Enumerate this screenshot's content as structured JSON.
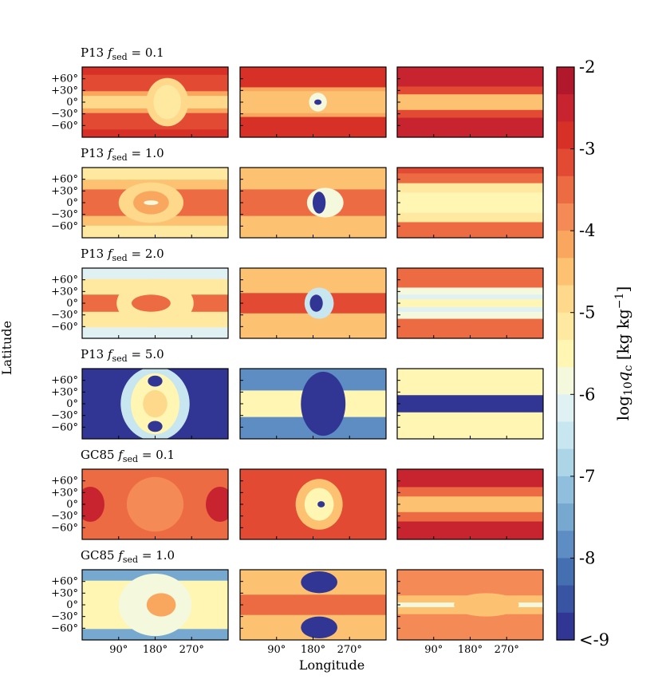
{
  "chart_data": {
    "type": "heatmap",
    "xlabel": "Longitude",
    "ylabel": "Latitude",
    "x_ticks": [
      "90°",
      "180°",
      "270°"
    ],
    "y_ticks": [
      "+60°",
      "+30°",
      "0°",
      "−30°",
      "−60°"
    ],
    "xlim": [
      0,
      360
    ],
    "ylim": [
      -90,
      90
    ],
    "colorbar": {
      "label": "log10 qc [kg kg−1]",
      "label_parts": {
        "pre": "log",
        "sub": "10",
        "q": "q",
        "qsub": "c",
        "post": " [kg kg",
        "sup": "−1",
        "end": "]"
      },
      "range": [
        -9,
        -2
      ],
      "ticks": [
        "-2",
        "-3",
        "-4",
        "-5",
        "-6",
        "-7",
        "-8",
        "<-9"
      ],
      "colors": [
        "#b2182b",
        "#c82430",
        "#d73027",
        "#e34a33",
        "#ec6b42",
        "#f48a55",
        "#f9a65f",
        "#fdc271",
        "#fed88b",
        "#ffe8a0",
        "#fff6b4",
        "#f4f8dc",
        "#e0f1f4",
        "#c7e6ef",
        "#acd5e7",
        "#8fbfdc",
        "#76a8d0",
        "#5d8dc2",
        "#4470b2",
        "#3a54a4",
        "#313695"
      ]
    },
    "rows": [
      {
        "label": "P13",
        "fsed": "= 0.1",
        "fsed_sym": "f",
        "fsed_sub": "sed",
        "panels": [
          {
            "bg": -2.9,
            "bands": [
              {
                "lat": 80,
                "w": 10,
                "v": -2.8
              },
              {
                "lat": -80,
                "w": 10,
                "v": -2.8
              },
              {
                "lat": 0,
                "w": 28,
                "v": -4.2
              },
              {
                "lat": 0,
                "w": 16,
                "v": -4.7
              }
            ],
            "blobs": [
              {
                "lon": 210,
                "lat": 0,
                "rx": 52,
                "ry": 62,
                "v": -4.9
              },
              {
                "lon": 210,
                "lat": 0,
                "rx": 34,
                "ry": 44,
                "v": -5.3
              }
            ]
          },
          {
            "bg": -2.7,
            "bands": [
              {
                "lat": 0,
                "w": 38,
                "v": -4.1
              },
              {
                "lat": 0,
                "w": 28,
                "v": -4.6
              }
            ],
            "blobs": [
              {
                "lon": 192,
                "lat": 0,
                "rx": 22,
                "ry": 24,
                "v": -5.8
              },
              {
                "lon": 192,
                "lat": 0,
                "rx": 9,
                "ry": 7,
                "v": -9
              }
            ]
          },
          {
            "bg": -2.3,
            "bands": [
              {
                "lat": 0,
                "w": 40,
                "v": -3.2
              },
              {
                "lat": 0,
                "w": 20,
                "v": -4.6
              }
            ],
            "blobs": []
          }
        ]
      },
      {
        "label": "P13",
        "fsed": "= 1.0",
        "fsed_sym": "f",
        "fsed_sub": "sed",
        "panels": [
          {
            "bg": -4.6,
            "bands": [
              {
                "lat": 0,
                "w": 34,
                "v": -3.4
              },
              {
                "lat": 75,
                "w": 16,
                "v": -5.0
              },
              {
                "lat": -75,
                "w": 16,
                "v": -5.0
              }
            ],
            "blobs": [
              {
                "lon": 170,
                "lat": 0,
                "rx": 80,
                "ry": 52,
                "v": -4.7
              },
              {
                "lon": 170,
                "lat": 0,
                "rx": 44,
                "ry": 30,
                "v": -4.1
              },
              {
                "lon": 170,
                "lat": 0,
                "rx": 18,
                "ry": 6,
                "v": -5.8
              }
            ]
          },
          {
            "bg": -4.4,
            "bands": [
              {
                "lat": 0,
                "w": 34,
                "v": -3.3
              }
            ],
            "blobs": [
              {
                "lon": 210,
                "lat": 0,
                "rx": 45,
                "ry": 38,
                "v": -5.8
              },
              {
                "lon": 195,
                "lat": 0,
                "rx": 16,
                "ry": 28,
                "v": -9
              }
            ]
          },
          {
            "bg": -3.3,
            "bands": [
              {
                "lat": 0,
                "w": 50,
                "v": -5.1
              },
              {
                "lat": 0,
                "w": 26,
                "v": -5.6
              },
              {
                "lat": 85,
                "w": 10,
                "v": -2.9
              }
            ],
            "blobs": []
          }
        ]
      },
      {
        "label": "P13",
        "fsed": "= 2.0",
        "fsed_sym": "f",
        "fsed_sub": "sed",
        "panels": [
          {
            "bg": -6.3,
            "bands": [
              {
                "lat": 0,
                "w": 62,
                "v": -5.0
              },
              {
                "lat": 0,
                "w": 22,
                "v": -3.5
              }
            ],
            "blobs": [
              {
                "lon": 180,
                "lat": 0,
                "rx": 95,
                "ry": 62,
                "v": -5.3
              },
              {
                "lon": 170,
                "lat": 0,
                "rx": 48,
                "ry": 22,
                "v": -3.4
              }
            ]
          },
          {
            "bg": -4.5,
            "bands": [
              {
                "lat": 0,
                "w": 26,
                "v": -3.2
              }
            ],
            "blobs": [
              {
                "lon": 195,
                "lat": 0,
                "rx": 36,
                "ry": 40,
                "v": -6.6
              },
              {
                "lon": 188,
                "lat": 0,
                "rx": 16,
                "ry": 22,
                "v": -9
              }
            ]
          },
          {
            "bg": -3.4,
            "bands": [
              {
                "lat": 0,
                "w": 40,
                "v": -5.8
              },
              {
                "lat": 0,
                "w": 22,
                "v": -6.3
              },
              {
                "lat": 0,
                "w": 10,
                "v": -5.5
              }
            ],
            "blobs": []
          }
        ]
      },
      {
        "label": "P13",
        "fsed": "= 5.0",
        "fsed_sym": "f",
        "fsed_sub": "sed",
        "panels": [
          {
            "bg": -9,
            "bands": [],
            "blobs": [
              {
                "lon": 180,
                "lat": 0,
                "rx": 85,
                "ry": 95,
                "v": -6.6
              },
              {
                "lon": 180,
                "lat": 0,
                "rx": 60,
                "ry": 78,
                "v": -5.6
              },
              {
                "lon": 180,
                "lat": 0,
                "rx": 30,
                "ry": 35,
                "v": -4.7
              },
              {
                "lon": 180,
                "lat": 58,
                "rx": 18,
                "ry": 14,
                "v": -9
              },
              {
                "lon": 180,
                "lat": -58,
                "rx": 18,
                "ry": 14,
                "v": -9
              }
            ]
          },
          {
            "bg": -7.8,
            "bands": [
              {
                "lat": 0,
                "w": 34,
                "v": -5.4
              }
            ],
            "blobs": [
              {
                "lon": 205,
                "lat": 0,
                "rx": 55,
                "ry": 82,
                "v": -9
              }
            ]
          },
          {
            "bg": -5.4,
            "bands": [
              {
                "lat": 0,
                "w": 22,
                "v": -9
              }
            ],
            "blobs": [
              {
                "lon": 250,
                "lat": 0,
                "rx": 70,
                "ry": 16,
                "v": -9
              }
            ]
          }
        ]
      },
      {
        "label": "GC85",
        "fsed": "= 0.1",
        "fsed_sym": "f",
        "fsed_sub": "sed",
        "panels": [
          {
            "bg": -3.5,
            "bands": [],
            "blobs": [
              {
                "lon": 20,
                "lat": 0,
                "rx": 35,
                "ry": 45,
                "v": -2.5
              },
              {
                "lon": 340,
                "lat": 0,
                "rx": 35,
                "ry": 45,
                "v": -2.5
              },
              {
                "lon": 180,
                "lat": 0,
                "rx": 70,
                "ry": 70,
                "v": -3.7
              }
            ]
          },
          {
            "bg": -2.9,
            "bands": [],
            "blobs": [
              {
                "lon": 195,
                "lat": 0,
                "rx": 58,
                "ry": 65,
                "v": -4.5
              },
              {
                "lon": 195,
                "lat": 0,
                "rx": 36,
                "ry": 42,
                "v": -5.6
              },
              {
                "lon": 200,
                "lat": 0,
                "rx": 9,
                "ry": 8,
                "v": -9
              }
            ]
          },
          {
            "bg": -2.5,
            "bands": [
              {
                "lat": 0,
                "w": 44,
                "v": -3.3
              },
              {
                "lat": 0,
                "w": 20,
                "v": -4.6
              }
            ],
            "blobs": []
          }
        ]
      },
      {
        "label": "GC85",
        "fsed": "= 1.0",
        "fsed_sym": "f",
        "fsed_sub": "sed",
        "panels": [
          {
            "bg": -7.6,
            "bands": [
              {
                "lat": 0,
                "w": 62,
                "v": -5.6
              }
            ],
            "blobs": [
              {
                "lon": 180,
                "lat": 0,
                "rx": 90,
                "ry": 80,
                "v": -5.7
              },
              {
                "lon": 195,
                "lat": 0,
                "rx": 36,
                "ry": 30,
                "v": -4.0
              }
            ]
          },
          {
            "bg": -4.6,
            "bands": [
              {
                "lat": 0,
                "w": 26,
                "v": -3.4
              }
            ],
            "blobs": [
              {
                "lon": 195,
                "lat": 58,
                "rx": 45,
                "ry": 28,
                "v": -9
              },
              {
                "lon": 195,
                "lat": -58,
                "rx": 45,
                "ry": 28,
                "v": -9
              }
            ]
          },
          {
            "bg": -3.6,
            "bands": [
              {
                "lat": 0,
                "w": 24,
                "v": -4.4
              },
              {
                "lat": 0,
                "w": 6,
                "v": -5.8
              }
            ],
            "blobs": [
              {
                "lon": 220,
                "lat": 0,
                "rx": 80,
                "ry": 30,
                "v": -4.3
              }
            ]
          }
        ]
      }
    ]
  }
}
